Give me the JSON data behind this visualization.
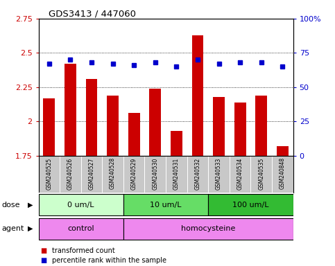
{
  "title": "GDS3413 / 447060",
  "samples": [
    "GSM240525",
    "GSM240526",
    "GSM240527",
    "GSM240528",
    "GSM240529",
    "GSM240530",
    "GSM240531",
    "GSM240532",
    "GSM240533",
    "GSM240534",
    "GSM240535",
    "GSM240848"
  ],
  "transformed_count": [
    2.17,
    2.42,
    2.31,
    2.19,
    2.06,
    2.24,
    1.93,
    2.63,
    2.18,
    2.14,
    2.19,
    1.82
  ],
  "percentile_rank": [
    67,
    70,
    68,
    67,
    66,
    68,
    65,
    70,
    67,
    68,
    68,
    65
  ],
  "ylim_left": [
    1.75,
    2.75
  ],
  "ylim_right": [
    0,
    100
  ],
  "yticks_left": [
    1.75,
    2.0,
    2.25,
    2.5,
    2.75
  ],
  "yticks_right": [
    0,
    25,
    50,
    75,
    100
  ],
  "ytick_labels_left": [
    "1.75",
    "2",
    "2.25",
    "2.5",
    "2.75"
  ],
  "ytick_labels_right": [
    "0",
    "25",
    "50",
    "75",
    "100%"
  ],
  "bar_color": "#cc0000",
  "dot_color": "#0000cc",
  "bar_width": 0.55,
  "dose_groups": [
    {
      "label": "0 um/L",
      "start": 0,
      "end": 4,
      "color": "#ccffcc"
    },
    {
      "label": "10 um/L",
      "start": 4,
      "end": 8,
      "color": "#66dd66"
    },
    {
      "label": "100 um/L",
      "start": 8,
      "end": 12,
      "color": "#33bb33"
    }
  ],
  "agent_groups": [
    {
      "label": "control",
      "start": 0,
      "end": 4,
      "color": "#ee88ee"
    },
    {
      "label": "homocysteine",
      "start": 4,
      "end": 12,
      "color": "#ee88ee"
    }
  ],
  "dose_label": "dose",
  "agent_label": "agent",
  "background_color": "#ffffff",
  "sample_bg_color": "#c8c8c8",
  "legend_tc_color": "#cc0000",
  "legend_pr_color": "#0000cc"
}
